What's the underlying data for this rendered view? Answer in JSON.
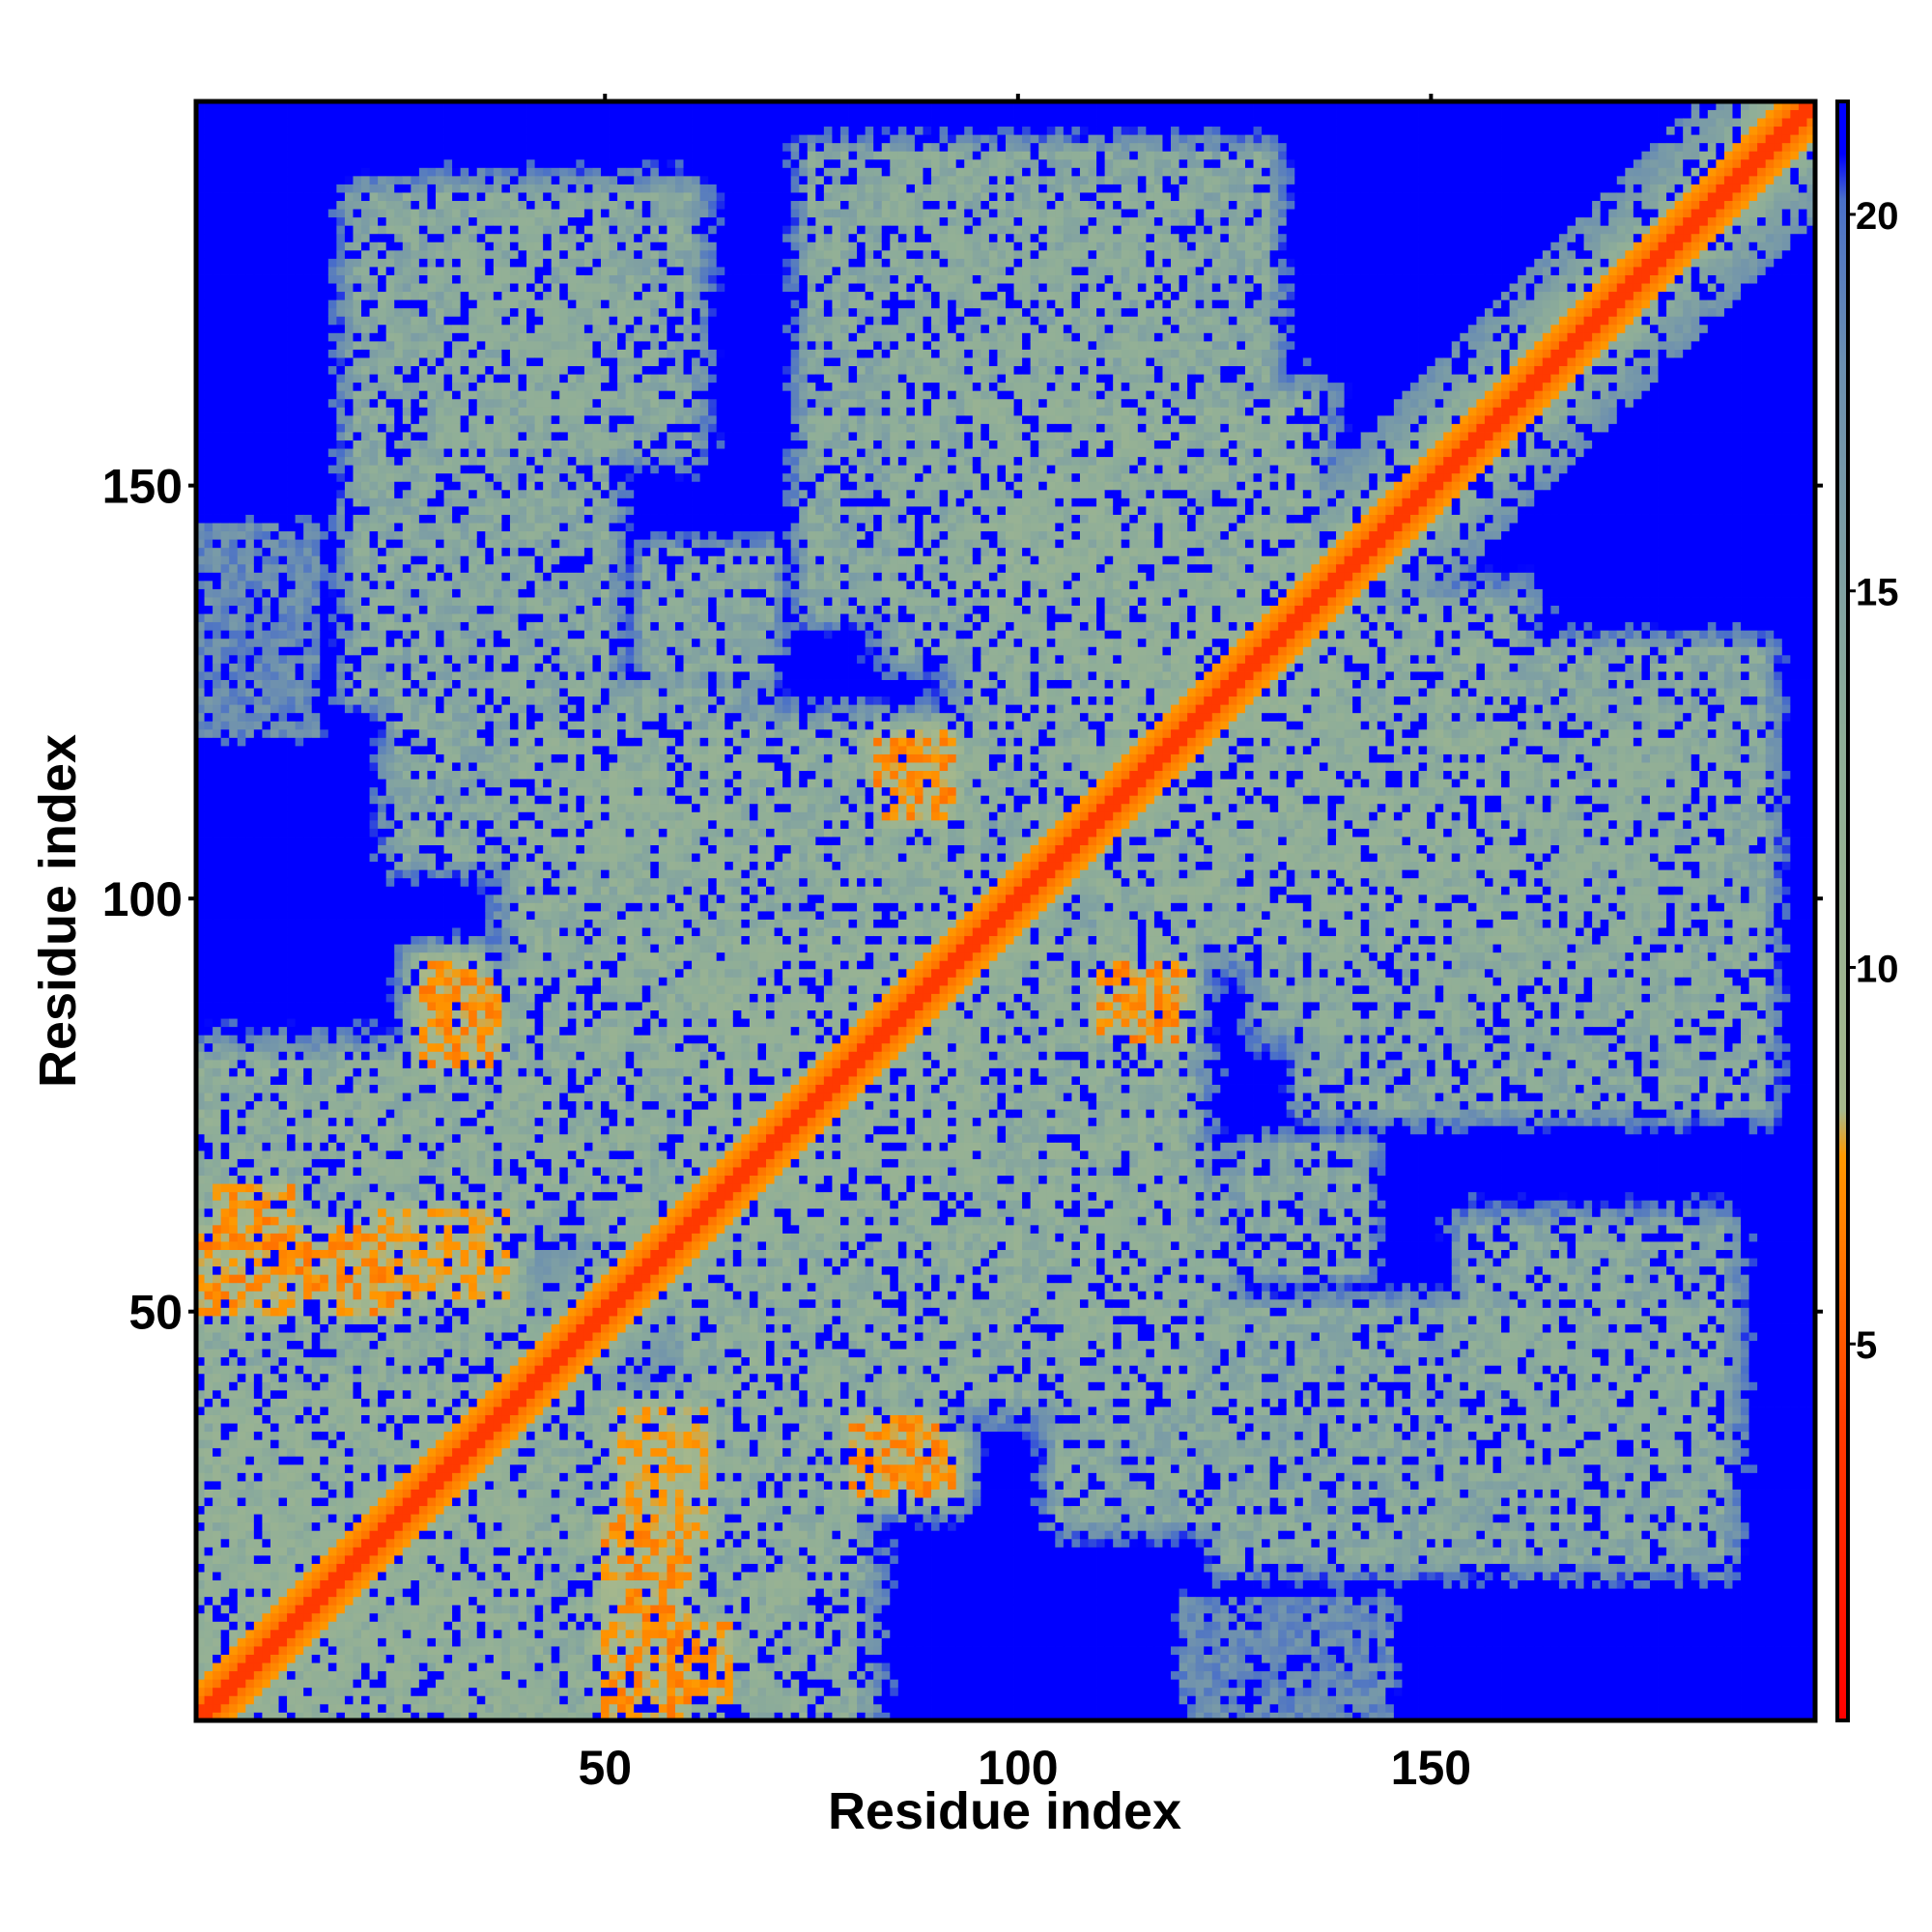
{
  "chart_data": {
    "type": "heatmap",
    "title": "",
    "xlabel": "Residue index",
    "ylabel": "Residue index",
    "n_residues": 196,
    "xlim": [
      1,
      196
    ],
    "ylim": [
      1,
      196
    ],
    "x_ticks": [
      50,
      100,
      150
    ],
    "y_ticks": [
      50,
      100,
      150
    ],
    "colorbar": {
      "ticks": [
        5,
        10,
        15,
        20
      ],
      "range": [
        0,
        21.5
      ],
      "stops": [
        {
          "value": 0,
          "color": "#ff0000"
        },
        {
          "value": 4,
          "color": "#ff3c00"
        },
        {
          "value": 7.5,
          "color": "#ff9900"
        },
        {
          "value": 8.1,
          "color": "#a6b88c"
        },
        {
          "value": 13,
          "color": "#8fae98"
        },
        {
          "value": 18,
          "color": "#6c8fb0"
        },
        {
          "value": 20.2,
          "color": "#4a70c8"
        },
        {
          "value": 20.8,
          "color": "#0000ff"
        }
      ]
    },
    "cutoff_color": "#0000ff",
    "contact_regions": [
      {
        "x": [
          50,
          60
        ],
        "y": [
          1,
          25
        ],
        "value": 6,
        "spread": 4
      },
      {
        "x": [
          3,
          12
        ],
        "y": [
          58,
          65
        ],
        "value": 6,
        "spread": 3
      },
      {
        "x": [
          22,
          35
        ],
        "y": [
          52,
          62
        ],
        "value": 7,
        "spread": 5
      },
      {
        "x": [
          28,
          34
        ],
        "y": [
          85,
          92
        ],
        "value": 6,
        "spread": 4
      },
      {
        "x": [
          52,
          62
        ],
        "y": [
          25,
          38
        ],
        "value": 7,
        "spread": 5
      },
      {
        "x": [
          80,
          90
        ],
        "y": [
          28,
          37
        ],
        "value": 6,
        "spread": 4
      },
      {
        "x": [
          83,
          92
        ],
        "y": [
          112,
          120
        ],
        "value": 6,
        "spread": 4
      },
      {
        "x": [
          110,
          118
        ],
        "y": [
          84,
          91
        ],
        "value": 6,
        "spread": 4
      },
      {
        "x": [
          20,
          50
        ],
        "y": [
          125,
          185
        ],
        "value": 12,
        "spread": 6
      },
      {
        "x": [
          55,
          70
        ],
        "y": [
          128,
          142
        ],
        "value": 12,
        "spread": 4
      },
      {
        "x": [
          75,
          105
        ],
        "y": [
          135,
          190
        ],
        "value": 12,
        "spread": 6
      },
      {
        "x": [
          105,
          130
        ],
        "y": [
          150,
          190
        ],
        "value": 12,
        "spread": 6
      },
      {
        "x": [
          130,
          185
        ],
        "y": [
          85,
          120
        ],
        "value": 12,
        "spread": 7
      },
      {
        "x": [
          155,
          185
        ],
        "y": [
          30,
          60
        ],
        "value": 12,
        "spread": 7
      },
      {
        "x": [
          105,
          125
        ],
        "y": [
          25,
          65
        ],
        "value": 12,
        "spread": 6
      },
      {
        "x": [
          1,
          40
        ],
        "y": [
          1,
          80
        ],
        "value": 11,
        "spread": 8
      },
      {
        "x": [
          40,
          95
        ],
        "y": [
          60,
          120
        ],
        "value": 11,
        "spread": 8
      },
      {
        "x": [
          95,
          135
        ],
        "y": [
          110,
          160
        ],
        "value": 11,
        "spread": 8
      },
      {
        "x": [
          120,
          140
        ],
        "y": [
          55,
          70
        ],
        "value": 14,
        "spread": 3
      },
      {
        "x": [
          128,
          142
        ],
        "y": [
          30,
          45
        ],
        "value": 14,
        "spread": 3
      },
      {
        "x": [
          1,
          15
        ],
        "y": [
          120,
          145
        ],
        "value": 16,
        "spread": 4
      }
    ]
  }
}
